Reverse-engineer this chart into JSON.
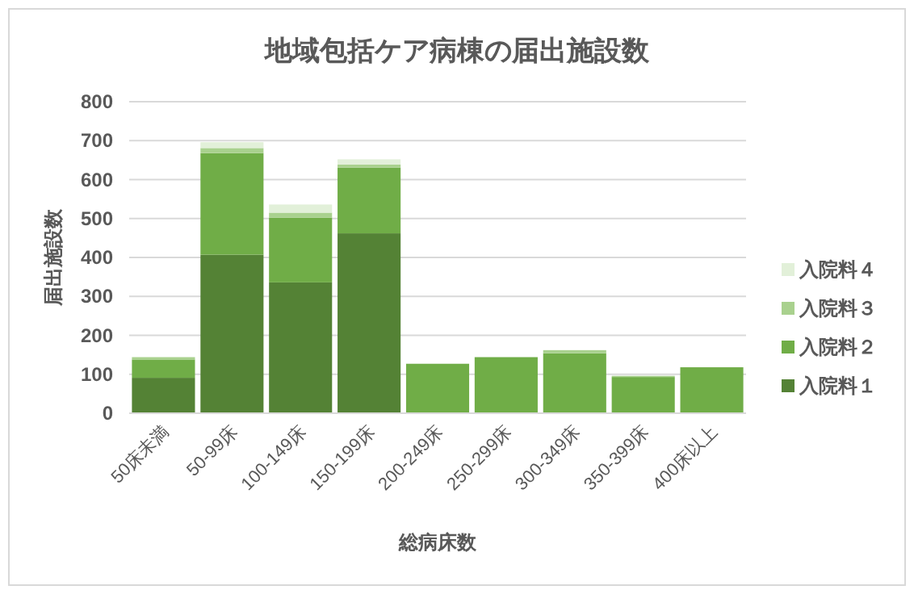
{
  "chart_data": {
    "type": "bar",
    "title": "地域包括ケア病棟の届出施設数",
    "xlabel": "総病床数",
    "ylabel": "届出施設数",
    "categories": [
      "50床未満",
      "50-99床",
      "100-149床",
      "150-199床",
      "200-249床",
      "250-299床",
      "300-349床",
      "350-399床",
      "400床以上"
    ],
    "stacked": true,
    "ylim": [
      0,
      800
    ],
    "yticks": [
      0,
      100,
      200,
      300,
      400,
      500,
      600,
      700,
      800
    ],
    "grid": "y",
    "legend": "right",
    "series": [
      {
        "name": "入院料１",
        "color": "#548235",
        "values": [
          91,
          407,
          336,
          462,
          0,
          0,
          0,
          0,
          0
        ]
      },
      {
        "name": "入院料２",
        "color": "#70ad47",
        "values": [
          47,
          261,
          166,
          169,
          127,
          144,
          154,
          93,
          118
        ]
      },
      {
        "name": "入院料３",
        "color": "#a9d18e",
        "values": [
          6,
          13,
          13,
          8,
          0,
          0,
          8,
          3,
          0
        ]
      },
      {
        "name": "入院料４",
        "color": "#e2f0d9",
        "values": [
          null,
          15,
          21,
          13,
          0,
          0,
          0,
          0,
          0
        ]
      }
    ]
  }
}
